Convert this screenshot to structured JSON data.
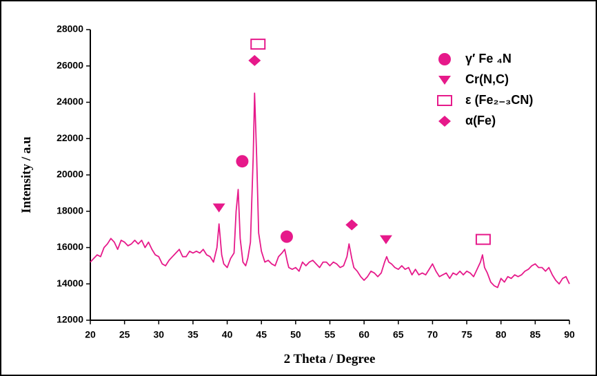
{
  "chart_data": {
    "type": "line",
    "xlabel": "2 Theta / Degree",
    "ylabel": "Intensity / a.u",
    "x": [
      20,
      20.5,
      21,
      21.5,
      22,
      22.5,
      23,
      23.5,
      24,
      24.5,
      25,
      25.5,
      26,
      26.5,
      27,
      27.5,
      28,
      28.5,
      29,
      29.5,
      30,
      30.5,
      31,
      31.5,
      32,
      32.5,
      33,
      33.5,
      34,
      34.5,
      35,
      35.5,
      36,
      36.5,
      37,
      37.5,
      38,
      38.5,
      38.8,
      39.2,
      39.5,
      40,
      40.5,
      41,
      41.3,
      41.6,
      41.9,
      42.3,
      42.7,
      43,
      43.4,
      43.8,
      44,
      44.3,
      44.6,
      45,
      45.5,
      46,
      46.5,
      47,
      47.5,
      48,
      48.4,
      48.8,
      49,
      49.5,
      50,
      50.5,
      51,
      51.5,
      52,
      52.5,
      53,
      53.5,
      54,
      54.5,
      55,
      55.5,
      56,
      56.5,
      57,
      57.5,
      57.8,
      58.2,
      58.5,
      59,
      59.5,
      60,
      60.5,
      61,
      61.5,
      62,
      62.5,
      63,
      63.3,
      63.6,
      64,
      64.5,
      65,
      65.5,
      66,
      66.5,
      67,
      67.5,
      68,
      68.5,
      69,
      69.5,
      70,
      70.5,
      71,
      71.5,
      72,
      72.5,
      73,
      73.5,
      74,
      74.5,
      75,
      75.5,
      76,
      76.5,
      77,
      77.3,
      77.6,
      78,
      78.5,
      79,
      79.5,
      80,
      80.5,
      81,
      81.5,
      82,
      82.5,
      83,
      83.5,
      84,
      84.5,
      85,
      85.5,
      86,
      86.5,
      87,
      87.5,
      88,
      88.5,
      89,
      89.5,
      90
    ],
    "series": [
      {
        "color": "#e6198a",
        "values": [
          15200,
          15400,
          15600,
          15500,
          16000,
          16200,
          16500,
          16300,
          15900,
          16400,
          16300,
          16100,
          16200,
          16400,
          16200,
          16400,
          16000,
          16300,
          15900,
          15600,
          15500,
          15100,
          15000,
          15300,
          15500,
          15700,
          15900,
          15500,
          15500,
          15800,
          15700,
          15800,
          15700,
          15900,
          15600,
          15500,
          15200,
          16000,
          17300,
          15600,
          15100,
          14900,
          15400,
          15700,
          18000,
          19200,
          16500,
          15200,
          15000,
          15400,
          16300,
          21000,
          24500,
          21000,
          16800,
          15800,
          15200,
          15300,
          15100,
          15000,
          15500,
          15700,
          15900,
          15200,
          14900,
          14800,
          14900,
          14700,
          15200,
          15000,
          15200,
          15300,
          15100,
          14900,
          15200,
          15200,
          15000,
          15200,
          15100,
          14900,
          15000,
          15500,
          16200,
          15400,
          14900,
          14700,
          14400,
          14200,
          14400,
          14700,
          14600,
          14400,
          14600,
          15200,
          15500,
          15200,
          15100,
          14900,
          14800,
          15000,
          14800,
          14900,
          14500,
          14800,
          14500,
          14600,
          14500,
          14800,
          15100,
          14700,
          14400,
          14500,
          14600,
          14300,
          14600,
          14500,
          14700,
          14500,
          14700,
          14600,
          14400,
          14800,
          15200,
          15600,
          14900,
          14600,
          14100,
          13900,
          13800,
          14300,
          14100,
          14400,
          14300,
          14500,
          14400,
          14500,
          14700,
          14800,
          15000,
          15100,
          14900,
          14900,
          14700,
          14900,
          14500,
          14200,
          14000,
          14300,
          14400,
          14000
        ]
      }
    ],
    "xlim": [
      20,
      90
    ],
    "xticks": [
      20,
      25,
      30,
      35,
      40,
      45,
      50,
      55,
      60,
      65,
      70,
      75,
      80,
      85,
      90
    ],
    "ylim": [
      12000,
      28000
    ],
    "yticks": [
      12000,
      14000,
      16000,
      18000,
      20000,
      22000,
      24000,
      26000,
      28000
    ],
    "legend": [
      {
        "name": "γ′ Fe ₄N",
        "symbol": "circle"
      },
      {
        "name": "Cr(N,C)",
        "symbol": "triangle"
      },
      {
        "name": "ε (Fe₂₋₃CN)",
        "symbol": "square"
      },
      {
        "name": "α(Fe)",
        "symbol": "diamond"
      }
    ],
    "markers": [
      {
        "x": 44.5,
        "y": 27200,
        "symbol": "square"
      },
      {
        "x": 44,
        "y": 26300,
        "symbol": "diamond"
      },
      {
        "x": 42.2,
        "y": 20750,
        "symbol": "circle"
      },
      {
        "x": 38.8,
        "y": 18200,
        "symbol": "triangle"
      },
      {
        "x": 48.7,
        "y": 16600,
        "symbol": "circle"
      },
      {
        "x": 58.2,
        "y": 17250,
        "symbol": "diamond"
      },
      {
        "x": 63.2,
        "y": 16450,
        "symbol": "triangle"
      },
      {
        "x": 77.4,
        "y": 16450,
        "symbol": "square"
      }
    ]
  }
}
